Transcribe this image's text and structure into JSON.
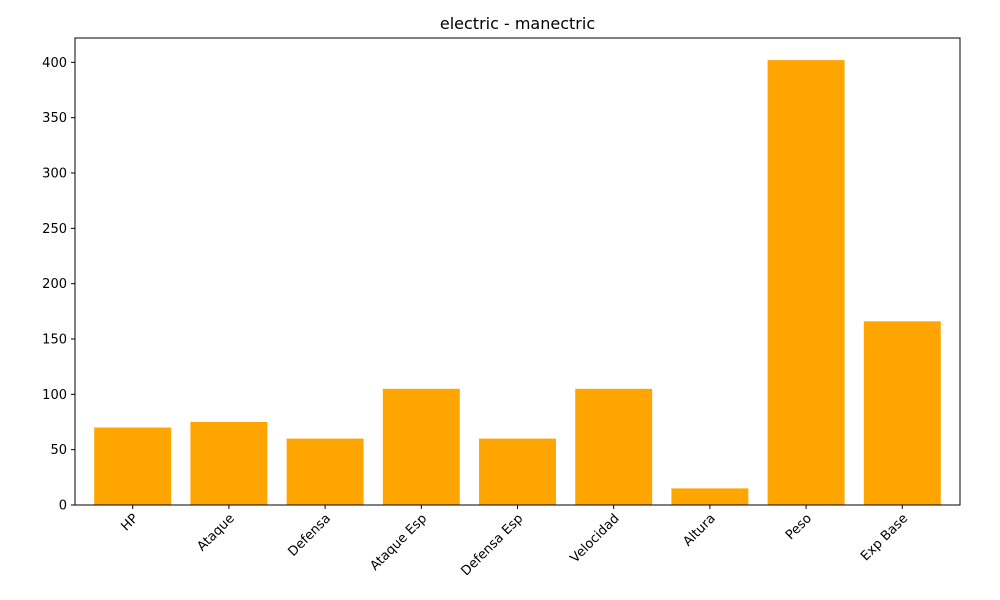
{
  "chart_data": {
    "type": "bar",
    "title": "electric - manectric",
    "xlabel": "",
    "ylabel": "",
    "categories": [
      "HP",
      "Ataque",
      "Defensa",
      "Ataque Esp",
      "Defensa Esp",
      "Velocidad",
      "Altura",
      "Peso",
      "Exp Base"
    ],
    "values": [
      70,
      75,
      60,
      105,
      60,
      105,
      15,
      402,
      166
    ],
    "ylim": [
      0,
      422
    ],
    "yticks": [
      0,
      50,
      100,
      150,
      200,
      250,
      300,
      350,
      400
    ],
    "bar_color": "#ffa500",
    "grid": false,
    "legend": "none"
  }
}
